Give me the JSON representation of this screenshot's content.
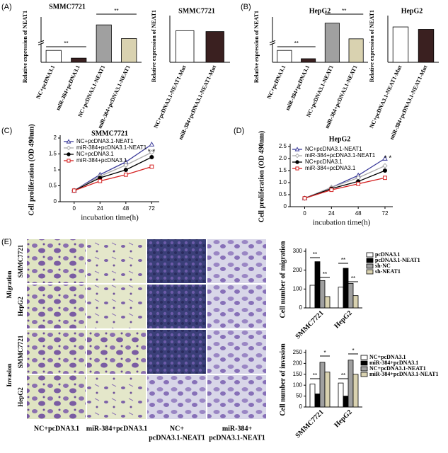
{
  "figure": {
    "panels": [
      "(A)",
      "(B)",
      "(C)",
      "(D)",
      "(E)"
    ],
    "groups": [
      "Migration",
      "Invasion"
    ],
    "rows": [
      "SMMC7721",
      "HepG2",
      "SMMC7721",
      "HepG2"
    ],
    "columns": [
      [
        "NC+pcDNA3.1"
      ],
      [
        "miR-384+pcDNA3.1"
      ],
      [
        "NC+",
        "pcDNA3.1-NEAT1"
      ],
      [
        "miR-384+",
        "pcDNA3.1-NEAT1"
      ]
    ]
  },
  "chart_data": [
    {
      "type": "bar",
      "title": "SMMC7721",
      "y_label": "Relative expression of NEAT1",
      "categories": [
        "NC+pcDNA3.1",
        "miR-384+pcDNA3.1",
        "NC+pcDNA3.1-NEAT1",
        "miR-384+pcDNA3.1-NEAT1"
      ],
      "values": [
        1.0,
        0.35,
        20,
        6.5
      ],
      "colors": [
        "#ffffff",
        "#3a2020",
        "#a0a0a0",
        "#d9d2b0"
      ],
      "ylim": [
        0,
        25
      ],
      "axis_break": [
        1.5,
        4
      ],
      "annotations": [
        "**",
        "**"
      ]
    },
    {
      "type": "bar",
      "title": "SMMC7721",
      "y_label": "Relative expression of NEAT1",
      "categories": [
        "NC+pcDNA3.1-NEAT1-Mut",
        "miR-384+pcDNA3.1-NEAT1-Mut"
      ],
      "values": [
        18,
        17.5
      ],
      "colors": [
        "#ffffff",
        "#3a2020"
      ],
      "ylim": [
        0,
        25
      ]
    },
    {
      "type": "bar",
      "title": "HepG2",
      "y_label": "Relative expression of NEAT1",
      "categories": [
        "NC+pcDNA3.1",
        "miR-384+pcDNA3.1",
        "NC+pcDNA3.1-NEAT1",
        "miR-384+pcDNA3.1-NEAT1"
      ],
      "values": [
        1.0,
        0.3,
        19,
        5
      ],
      "colors": [
        "#ffffff",
        "#3a2020",
        "#a0a0a0",
        "#d9d2b0"
      ],
      "ylim": [
        0,
        22
      ],
      "axis_break": [
        1.5,
        3
      ],
      "annotations": [
        "**",
        "**"
      ]
    },
    {
      "type": "bar",
      "title": "HepG2",
      "y_label": "Relative expression of NEAT1",
      "categories": [
        "NC+pcDNA3.1-NEAT1-Mut",
        "miR-384+pcDNA3.1-NEAT1-Mut"
      ],
      "values": [
        14.5,
        13.5
      ],
      "colors": [
        "#ffffff",
        "#3a2020"
      ],
      "ylim": [
        0,
        18
      ]
    },
    {
      "type": "line",
      "title": "SMMC7721",
      "x_label": "incubation time(h)",
      "y_label": "Cell proliferation (OD 490nm)",
      "x": [
        0,
        24,
        48,
        72
      ],
      "xlim": [
        -13,
        79
      ],
      "xticks": [
        0,
        24,
        48,
        72
      ],
      "ylim": [
        0,
        2
      ],
      "yticks": [
        0,
        0.5,
        1,
        1.5,
        2
      ],
      "series": [
        {
          "name": "NC+pcDNA3.1-NEAT1",
          "color": "#3b3b9a",
          "marker": "open-triangle",
          "values": [
            0.35,
            0.85,
            1.25,
            1.8
          ]
        },
        {
          "name": "miR-384+pcDNA3.1-NEAT1",
          "color": "#aaaaaa",
          "marker": "open-diamond",
          "values": [
            0.35,
            0.8,
            1.15,
            1.55
          ]
        },
        {
          "name": "NC+pcDNA3.1",
          "color": "#000000",
          "marker": "circle",
          "values": [
            0.35,
            0.75,
            1.0,
            1.4
          ]
        },
        {
          "name": "miR-384+pcDNA3.1",
          "color": "#d42020",
          "marker": "open-square",
          "values": [
            0.35,
            0.65,
            0.85,
            1.1
          ]
        }
      ],
      "annotations": [
        "* *"
      ]
    },
    {
      "type": "line",
      "title": "HepG2",
      "x_label": "incubation time(h)",
      "y_label": "Cell proliferation (OD 490nm)",
      "x": [
        0,
        24,
        48,
        72
      ],
      "xlim": [
        -13,
        79
      ],
      "xticks": [
        0,
        24,
        48,
        72
      ],
      "ylim": [
        0,
        2.5
      ],
      "yticks": [
        0,
        0.5,
        {
          "value": 1,
          "label": "1.0"
        },
        1.5,
        {
          "value": 2,
          "label": "2.0"
        },
        2.5
      ],
      "series": [
        {
          "name": "NC+pcDNA3.1-NEAT1",
          "color": "#3b3b9a",
          "marker": "open-triangle",
          "values": [
            0.35,
            0.8,
            1.3,
            2.0
          ]
        },
        {
          "name": "miR-384+pcDNA3.1-NEAT1",
          "color": "#aaaaaa",
          "marker": "open-diamond",
          "values": [
            0.35,
            0.8,
            1.2,
            1.7
          ]
        },
        {
          "name": "NC+pcDNA3.1",
          "color": "#000000",
          "marker": "circle",
          "values": [
            0.35,
            0.75,
            1.05,
            1.5
          ]
        },
        {
          "name": "miR-384+pcDNA3.1",
          "color": "#d42020",
          "marker": "open-square",
          "values": [
            0.35,
            0.7,
            0.95,
            1.2
          ]
        }
      ],
      "annotations": [
        "* *"
      ]
    },
    {
      "type": "grouped_bar",
      "y_label": "Cell number of migration",
      "categories": [
        "SMMC7721",
        "HepG2"
      ],
      "ylim": [
        0,
        300
      ],
      "yticks": [
        0,
        100,
        200,
        300
      ],
      "series": [
        {
          "name": "pcDNA3.1",
          "color": "#ffffff",
          "values": [
            120,
            110
          ]
        },
        {
          "name": "pcDNA3.1-NEAT1",
          "color": "#000000",
          "values": [
            245,
            210
          ]
        },
        {
          "name": "sh-NC",
          "color": "#a0a0a0",
          "values": [
            145,
            130
          ]
        },
        {
          "name": "sh-NEAT1",
          "color": "#d9d2b0",
          "values": [
            60,
            65
          ]
        }
      ],
      "annotations": [
        "**",
        "**",
        "**",
        "**"
      ]
    },
    {
      "type": "grouped_bar",
      "y_label": "Cell number of invasion",
      "categories": [
        "SMMC7721",
        "HepG2"
      ],
      "ylim": [
        0,
        250
      ],
      "yticks": [
        0,
        50,
        100,
        150,
        200,
        250
      ],
      "series": [
        {
          "name": "NC+pcDNA3.1",
          "color": "#ffffff",
          "values": [
            105,
            110
          ]
        },
        {
          "name": "miR-384+pcDNA3.1",
          "color": "#000000",
          "values": [
            60,
            50
          ]
        },
        {
          "name": "NC+pcDNA3.1-NEAT1",
          "color": "#a0a0a0",
          "values": [
            205,
            215
          ]
        },
        {
          "name": "miR-384+pcDNA3.1-NEAT1",
          "color": "#d9d2b0",
          "values": [
            160,
            150
          ]
        }
      ],
      "annotations": [
        "**",
        "*",
        "**",
        "*"
      ]
    }
  ]
}
